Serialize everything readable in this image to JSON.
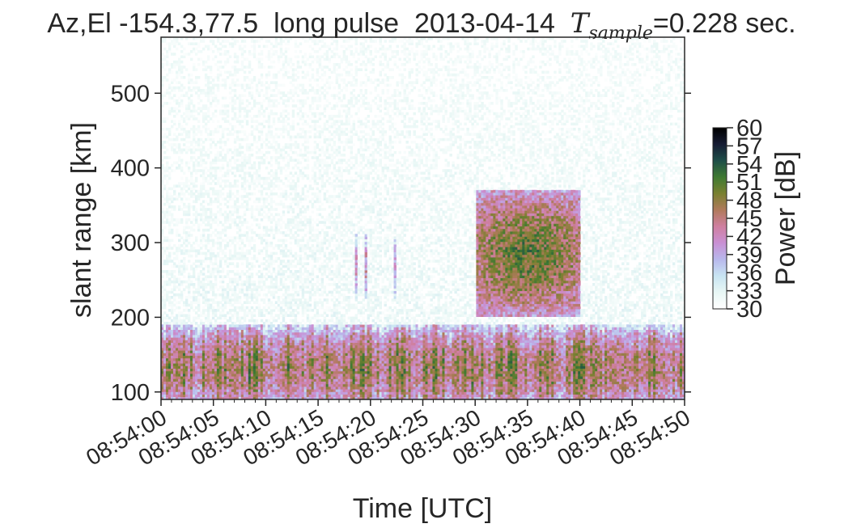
{
  "chart_data": {
    "type": "heatmap",
    "title": {
      "prefix": "Az,El -154.3,77.5  long pulse  2013-04-14  ",
      "math_symbol": "T",
      "math_subscript": "sample",
      "suffix": "=0.228 sec."
    },
    "xlabel": "Time [UTC]",
    "ylabel": "slant range [km]",
    "x_ticks": [
      "08:54:00",
      "08:54:05",
      "08:54:10",
      "08:54:15",
      "08:54:20",
      "08:54:25",
      "08:54:30",
      "08:54:35",
      "08:54:40",
      "08:54:45",
      "08:54:50"
    ],
    "xlim_seconds": [
      0,
      50
    ],
    "y_ticks": [
      100,
      200,
      300,
      400,
      500
    ],
    "ylim": [
      90,
      575
    ],
    "colorbar": {
      "label": "Power [dB]",
      "ticks": [
        30,
        33,
        36,
        39,
        42,
        45,
        48,
        51,
        54,
        57,
        60
      ],
      "range": [
        30,
        60
      ],
      "colormap": [
        "#ffffff",
        "#e8f7f5",
        "#c8e4f2",
        "#b8b8ec",
        "#c990d4",
        "#cf7fa0",
        "#b07a5c",
        "#7a8030",
        "#3f7a32",
        "#1e4e48",
        "#161c34",
        "#000000"
      ]
    },
    "features": [
      {
        "label": "E-region band",
        "x_range_seconds": [
          0,
          50
        ],
        "y_range_km": [
          95,
          170
        ],
        "peak_db": 46
      },
      {
        "label": "F-region blob",
        "x_range_seconds": [
          30,
          40
        ],
        "y_range_km": [
          220,
          350
        ],
        "peak_db": 50
      },
      {
        "label": "thin streaks",
        "x_range_seconds": [
          15,
          23
        ],
        "y_range_km": [
          245,
          295
        ],
        "peak_db": 42
      }
    ],
    "background_db": 31,
    "grid": false
  }
}
